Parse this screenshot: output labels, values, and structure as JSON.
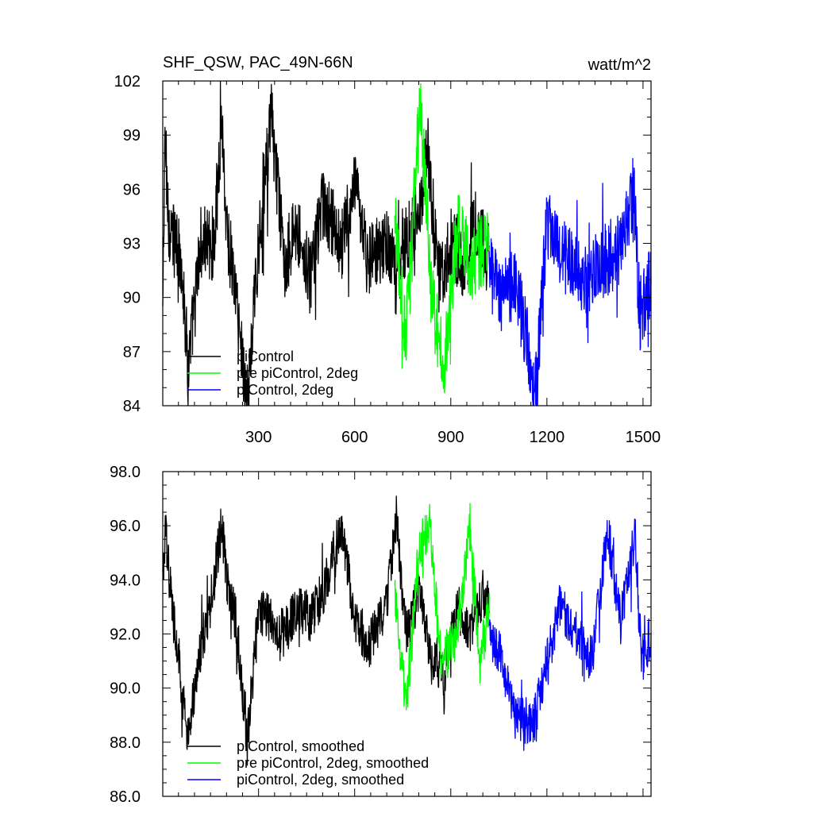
{
  "chart_data": [
    {
      "type": "line",
      "title_left": "SHF_QSW, PAC_49N-66N",
      "title_right": "watt/m^2",
      "xlim": [
        1,
        1525
      ],
      "ylim": [
        84,
        102
      ],
      "xticks": [
        300,
        600,
        900,
        1200,
        1500
      ],
      "xtick_labels": [
        "300",
        "600",
        "900",
        "1200",
        "1500"
      ],
      "yticks": [
        84,
        87,
        90,
        93,
        96,
        99,
        102
      ],
      "ytick_labels": [
        "84",
        "87",
        "90",
        "93",
        "96",
        "99",
        "102"
      ],
      "legend_position": "bottom-left",
      "grid": false,
      "series": [
        {
          "name": "piControl",
          "color": "#000000",
          "x_range": [
            1,
            1020
          ],
          "anchors": [
            [
              1,
              89
            ],
            [
              8,
              99
            ],
            [
              20,
              94
            ],
            [
              60,
              92
            ],
            [
              80,
              86
            ],
            [
              120,
              93
            ],
            [
              160,
              93
            ],
            [
              185,
              100
            ],
            [
              200,
              94
            ],
            [
              230,
              90
            ],
            [
              265,
              84
            ],
            [
              300,
              93
            ],
            [
              340,
              100
            ],
            [
              380,
              92
            ],
            [
              420,
              94
            ],
            [
              460,
              91
            ],
            [
              500,
              95
            ],
            [
              560,
              93
            ],
            [
              600,
              96
            ],
            [
              640,
              92
            ],
            [
              700,
              93
            ],
            [
              730,
              91
            ],
            [
              760,
              93
            ],
            [
              800,
              95
            ],
            [
              830,
              98
            ],
            [
              860,
              91
            ],
            [
              900,
              93
            ],
            [
              940,
              92
            ],
            [
              980,
              94
            ],
            [
              1020,
              92
            ]
          ]
        },
        {
          "name": "pre piControl, 2deg",
          "color": "#00ff00",
          "x_range": [
            725,
            1020
          ],
          "anchors": [
            [
              725,
              94
            ],
            [
              760,
              88
            ],
            [
              805,
              101
            ],
            [
              840,
              90
            ],
            [
              880,
              86
            ],
            [
              920,
              94
            ],
            [
              960,
              92
            ],
            [
              1020,
              93
            ]
          ]
        },
        {
          "name": "piControl, 2deg",
          "color": "#0000ff",
          "x_range": [
            1020,
            1525
          ],
          "anchors": [
            [
              1020,
              92
            ],
            [
              1060,
              90
            ],
            [
              1100,
              91
            ],
            [
              1165,
              85
            ],
            [
              1200,
              94
            ],
            [
              1260,
              92
            ],
            [
              1320,
              91
            ],
            [
              1380,
              92
            ],
            [
              1440,
              93
            ],
            [
              1470,
              96
            ],
            [
              1490,
              89
            ],
            [
              1525,
              91
            ]
          ]
        }
      ]
    },
    {
      "type": "line",
      "xlim": [
        1,
        1525
      ],
      "ylim": [
        86,
        98
      ],
      "xticks": [
        300,
        600,
        900,
        1200,
        1500
      ],
      "yticks": [
        86,
        88,
        90,
        92,
        94,
        96,
        98
      ],
      "ytick_labels": [
        "86.0",
        "88.0",
        "90.0",
        "92.0",
        "94.0",
        "96.0",
        "98.0"
      ],
      "legend_position": "bottom-left",
      "grid": false,
      "series": [
        {
          "name": "piControl, smoothed",
          "color": "#000000",
          "x_range": [
            1,
            1020
          ],
          "anchors": [
            [
              1,
              94
            ],
            [
              10,
              95.7
            ],
            [
              30,
              93
            ],
            [
              50,
              91.2
            ],
            [
              80,
              88
            ],
            [
              110,
              91
            ],
            [
              150,
              93
            ],
            [
              185,
              96.1
            ],
            [
              200,
              94
            ],
            [
              230,
              92.5
            ],
            [
              265,
              88
            ],
            [
              300,
              93
            ],
            [
              340,
              92.5
            ],
            [
              380,
              92
            ],
            [
              420,
              93
            ],
            [
              460,
              92.6
            ],
            [
              500,
              93.5
            ],
            [
              560,
              96
            ],
            [
              600,
              92.5
            ],
            [
              640,
              91.5
            ],
            [
              700,
              93
            ],
            [
              730,
              96.3
            ],
            [
              760,
              92
            ],
            [
              800,
              93.5
            ],
            [
              840,
              91
            ],
            [
              880,
              90.5
            ],
            [
              920,
              93
            ],
            [
              960,
              92
            ],
            [
              1000,
              93.5
            ],
            [
              1020,
              93
            ]
          ]
        },
        {
          "name": "pre piControl, 2deg, smoothed",
          "color": "#00ff00",
          "x_range": [
            725,
            1020
          ],
          "anchors": [
            [
              725,
              93.5
            ],
            [
              760,
              89.2
            ],
            [
              800,
              95
            ],
            [
              835,
              96.2
            ],
            [
              870,
              91
            ],
            [
              920,
              92
            ],
            [
              960,
              96
            ],
            [
              990,
              91
            ],
            [
              1020,
              93
            ]
          ]
        },
        {
          "name": "piControl, 2deg, smoothed",
          "color": "#0000ff",
          "x_range": [
            1020,
            1525
          ],
          "anchors": [
            [
              1020,
              92
            ],
            [
              1060,
              91
            ],
            [
              1100,
              89
            ],
            [
              1160,
              88.7
            ],
            [
              1200,
              91
            ],
            [
              1240,
              93
            ],
            [
              1290,
              92
            ],
            [
              1340,
              91
            ],
            [
              1390,
              95.8
            ],
            [
              1430,
              92.5
            ],
            [
              1475,
              95.6
            ],
            [
              1495,
              91
            ],
            [
              1525,
              92
            ]
          ]
        }
      ]
    }
  ]
}
